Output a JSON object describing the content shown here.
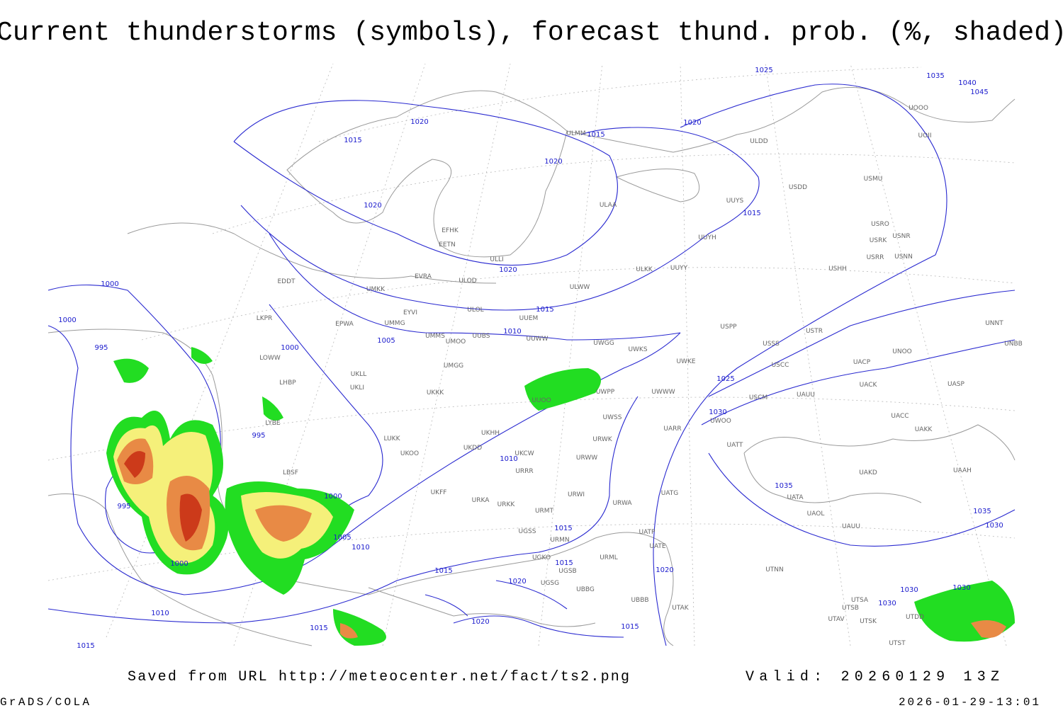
{
  "title": "Current thunderstorms (symbols), forecast thund. prob. (%, shaded)",
  "footer": {
    "saved": "Saved from URL http://meteocenter.net/fact/ts2.png",
    "valid": "Valid: 20260129 13Z",
    "software": "GrADS/COLA",
    "timestamp": "2026-01-29-13:01"
  },
  "map": {
    "isobar_labels": [
      1015,
      1020,
      1025,
      1035,
      1040,
      1045,
      1015,
      1020,
      1020,
      1020,
      1015,
      1020,
      1015,
      1010,
      1005,
      1000,
      1000,
      995,
      1000,
      995,
      1025,
      1030,
      1010,
      1000,
      995,
      1005,
      1010,
      1015,
      1015,
      1000,
      1015,
      1020,
      1020,
      1010,
      1020,
      1015,
      1015,
      1015,
      1035,
      1035,
      1030,
      1030,
      1030,
      1030
    ],
    "stations": [
      "EFHK",
      "EETN",
      "ULLI",
      "EVRA",
      "ULOD",
      "EDDT",
      "UMKK",
      "ULOL",
      "EYVI",
      "UUEM",
      "EPWA",
      "UMMG",
      "ULWW",
      "ULKK",
      "UUYY",
      "UUYH",
      "UUYS",
      "ULAA",
      "ULMM",
      "ULDD",
      "USDD",
      "USHH",
      "USRR",
      "USNN",
      "USRK",
      "USNR",
      "USRO",
      "USMU",
      "UOOO",
      "UOII",
      "UMMS",
      "UMOO",
      "UUBS",
      "UUWW",
      "UWGG",
      "UWKS",
      "USPP",
      "USTR",
      "USSS",
      "UNOO",
      "UNNT",
      "UNBB",
      "LKPR",
      "UMGG",
      "UKLL",
      "UKLI",
      "LOWW",
      "LHBP",
      "UKKK",
      "UWKE",
      "USCC",
      "UACP",
      "UACK",
      "UASP",
      "USCM",
      "UAUU",
      "UWPP",
      "UWWW",
      "UUOO",
      "UKHH",
      "UKDD",
      "UKOO",
      "LUKK",
      "UKFF",
      "URKA",
      "URKK",
      "URRR",
      "UKCW",
      "UWSS",
      "URWK",
      "URWW",
      "URWI",
      "UATG",
      "URWA",
      "UATT",
      "UWOO",
      "UARR",
      "UACC",
      "UAKK",
      "UAKD",
      "UAAH",
      "UATA",
      "UAOL",
      "UAUU",
      "UATP",
      "UATE",
      "UTNN",
      "UTSA",
      "UTSB",
      "UTAV",
      "UTSK",
      "UTDD",
      "UTST",
      "URMT",
      "URMN",
      "URML",
      "UBBB",
      "UTAK",
      "UGSS",
      "UGSB",
      "UGKO",
      "UGSG",
      "UBBG",
      "LBSF",
      "LYBE"
    ]
  }
}
